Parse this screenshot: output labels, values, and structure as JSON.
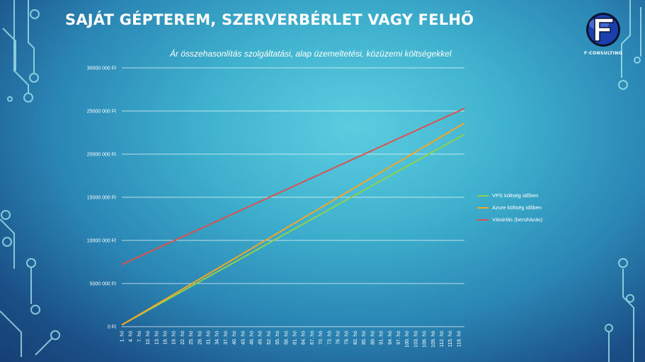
{
  "slide": {
    "title": "SAJÁT GÉPTEREM, SZERVERBÉRLET VAGY FELHŐ",
    "logo_text": "F·CONSULTING"
  },
  "colors": {
    "text": "#ffffff",
    "gridline": "#ffffff",
    "logo_blue": "#1a3fae",
    "logo_dark": "#0a1330"
  },
  "chart_data": {
    "type": "line",
    "title": "Ár összehasonlítás szolgáltatási, alap üzemeltetési, közüzemi költségekkel",
    "xlabel": "",
    "ylabel": "",
    "ylim": [
      0,
      30000000
    ],
    "yticks": [
      0,
      5000000,
      10000000,
      15000000,
      20000000,
      25000000,
      30000000
    ],
    "ytick_labels": [
      "0 Ft",
      "5000 000 Ft",
      "10000 000 Ft",
      "15000 000 Ft",
      "20000 000 Ft",
      "25000 000 Ft",
      "30000 000 Ft"
    ],
    "grid": true,
    "legend_position": "right",
    "x_range": [
      1,
      120
    ],
    "x_tick_labels": [
      "1. hó",
      "4. hó",
      "7. hó",
      "10. hó",
      "13. hó",
      "16. hó",
      "19. hó",
      "22. hó",
      "25. hó",
      "28. hó",
      "31. hó",
      "34. hó",
      "37. hó",
      "40. hó",
      "43. hó",
      "46. hó",
      "49. hó",
      "52. hó",
      "55. hó",
      "58. hó",
      "61. hó",
      "64. hó",
      "67. hó",
      "70. hó",
      "73. hó",
      "76. hó",
      "79. hó",
      "82. hó",
      "85. hó",
      "88. hó",
      "91. hó",
      "94. hó",
      "97. hó",
      "100. hó",
      "103. hó",
      "106. hó",
      "109. hó",
      "112. hó",
      "115. hó",
      "118. hó"
    ],
    "series": [
      {
        "name": "VPS költség időben",
        "color": "#8fd14f",
        "start": 200000,
        "end": 22300000
      },
      {
        "name": "Azure költség időben",
        "color": "#f5a623",
        "start": 200000,
        "end": 23600000
      },
      {
        "name": "Vásárlás (beruházás)",
        "color": "#d9534f",
        "start": 7200000,
        "end": 25300000
      }
    ]
  }
}
